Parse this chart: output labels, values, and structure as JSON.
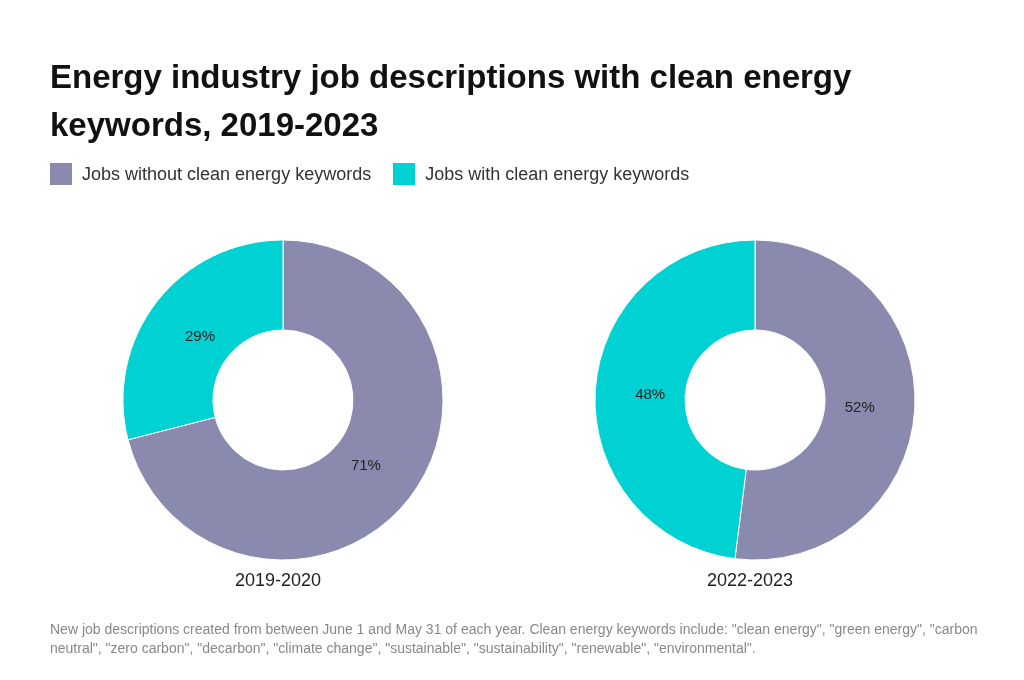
{
  "chart_data": [
    {
      "type": "donut",
      "title": "Energy industry job descriptions with clean energy keywords, 2019-2023",
      "legend": "top",
      "xlabel": "2019-2020",
      "categories": [
        "Jobs without clean energy keywords",
        "Jobs with clean energy keywords"
      ],
      "values": [
        71,
        29
      ],
      "colors": [
        "#8a8aae",
        "#00d2d3"
      ],
      "value_labels": [
        "71%",
        "29%"
      ],
      "annotations": [
        "New job descriptions created from between June 1 and May 31 of each year. Clean energy keywords include: \"clean energy\", \"green energy\", \"carbon neutral\", \"zero carbon\", \"decarbon\", \"climate change\", \"sustainable\", \"sustainability\", \"renewable\", \"environmental\"."
      ]
    },
    {
      "type": "donut",
      "xlabel": "2022-2023",
      "categories": [
        null,
        null
      ],
      "values": [
        52,
        48
      ],
      "colors": [
        "#8a8aae",
        "#00d2d3"
      ],
      "value_labels": [
        "52%",
        "48%"
      ]
    }
  ]
}
